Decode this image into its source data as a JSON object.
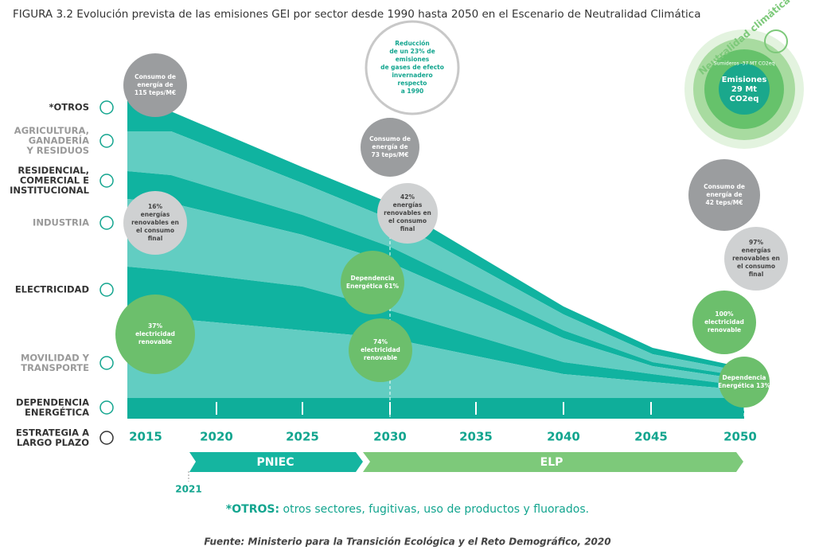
{
  "header": {
    "title": "FIGURA 3.2  Evolución prevista de las emisiones GEI por sector desde 1990 hasta 2050 en el Escenario de Neutralidad Climática"
  },
  "sectors": [
    {
      "lines": [
        "*OTROS"
      ],
      "muted": false
    },
    {
      "lines": [
        "AGRICULTURA,",
        "GANADERÍA",
        "Y RESIDUOS"
      ],
      "muted": true
    },
    {
      "lines": [
        "RESIDENCIAL,",
        "COMERCIAL E",
        "INSTITUCIONAL"
      ],
      "muted": false
    },
    {
      "lines": [
        "INDUSTRIA"
      ],
      "muted": true
    },
    {
      "lines": [
        "ELECTRICIDAD"
      ],
      "muted": false
    },
    {
      "lines": [
        "MOVILIDAD Y",
        "TRANSPORTE"
      ],
      "muted": true
    },
    {
      "lines": [
        "DEPENDENCIA",
        "ENERGÉTICA"
      ],
      "muted": false
    },
    {
      "lines": [
        "ESTRATEGIA A",
        "LARGO PLAZO"
      ],
      "muted": false
    }
  ],
  "years": [
    "2015",
    "2020",
    "2025",
    "2030",
    "2035",
    "2040",
    "2045",
    "2050"
  ],
  "phases": [
    {
      "label": "PNIEC"
    },
    {
      "label": "ELP"
    }
  ],
  "start_year": "2021",
  "bubbles": [
    {
      "kind": "gray",
      "lines": [
        "Consumo de",
        "energía de",
        "115 teps/M€"
      ]
    },
    {
      "kind": "gray",
      "lines": [
        "Consumo de",
        "energía de",
        "73 teps/M€"
      ]
    },
    {
      "kind": "outline",
      "lines": [
        "Reducción",
        "de un 23% de",
        "emisiones",
        "de gases de efecto",
        "invernadero",
        "respecto",
        "a 1990"
      ]
    },
    {
      "kind": "light",
      "lines": [
        "16%",
        "energías",
        "renovables en",
        "el consumo",
        "final"
      ]
    },
    {
      "kind": "light",
      "lines": [
        "42%",
        "energías",
        "renovables en",
        "el consumo",
        "final"
      ]
    },
    {
      "kind": "green",
      "lines": [
        "Dependencia",
        "Energética 61%"
      ]
    },
    {
      "kind": "green",
      "lines": [
        "37%",
        "electricidad",
        "renovable"
      ]
    },
    {
      "kind": "green",
      "lines": [
        "74%",
        "electricidad",
        "renovable"
      ]
    },
    {
      "kind": "gray",
      "lines": [
        "Consumo de",
        "energía de",
        "42 teps/M€"
      ]
    },
    {
      "kind": "light",
      "lines": [
        "97%",
        "energías",
        "renovables en",
        "el consumo",
        "final"
      ]
    },
    {
      "kind": "green",
      "lines": [
        "100%",
        "electricidad",
        "renovable"
      ]
    },
    {
      "kind": "green",
      "lines": [
        "Dependencia",
        "Energética 13%"
      ]
    }
  ],
  "globe": {
    "ring": "Neutralidad climática",
    "sinks": "Sumideros -37 MT CO2eq",
    "lines": [
      "Emisiones",
      "29 Mt",
      "CO2eq"
    ]
  },
  "footnote": {
    "term": "*OTROS:",
    "text": "otros sectores, fugitivas, uso de productos y fluorados."
  },
  "source": "Fuente:  Ministerio para la Transición Ecológica y el Reto Demográfico, 2020"
}
